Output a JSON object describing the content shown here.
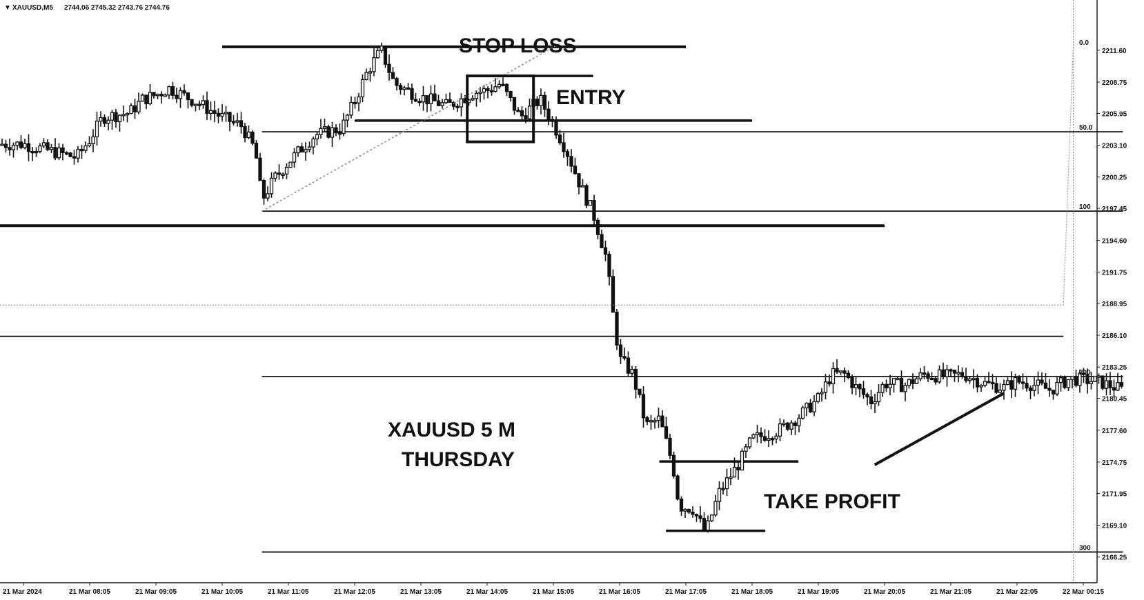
{
  "header": {
    "marker": "▼",
    "symbol": "XAUUSD,M5",
    "ohlc": "2744.06 2745.32 2743.76 2744.76"
  },
  "annotations": {
    "stop_loss": "STOP LOSS",
    "entry": "ENTRY",
    "take_profit": "TAKE PROFIT",
    "caption_line1": "XAUUSD 5 M",
    "caption_line2": "THURSDAY"
  },
  "chart_data": {
    "type": "candlestick",
    "symbol": "XAUUSD",
    "timeframe": "M5",
    "ylim": [
      2165.0,
      2213.5
    ],
    "y_ticks": [
      "2211.60",
      "2208.75",
      "2205.95",
      "2203.10",
      "2200.25",
      "2197.45",
      "2194.60",
      "2191.75",
      "2188.95",
      "2186.10",
      "2183.25",
      "2180.45",
      "2177.60",
      "2174.75",
      "2171.95",
      "2169.10",
      "2166.25"
    ],
    "x_ticks": [
      "21 Mar 2024",
      "21 Mar 08:05",
      "21 Mar 09:05",
      "21 Mar 10:05",
      "21 Mar 11:05",
      "21 Mar 12:05",
      "21 Mar 13:05",
      "21 Mar 14:05",
      "21 Mar 15:05",
      "21 Mar 16:05",
      "21 Mar 17:05",
      "21 Mar 18:05",
      "21 Mar 19:05",
      "21 Mar 20:05",
      "21 Mar 21:05",
      "21 Mar 22:05",
      "22 Mar 00:15"
    ],
    "fib_labels": [
      {
        "label": "0.0",
        "price": 2211.9
      },
      {
        "label": "50.0",
        "price": 2204.3
      },
      {
        "label": "100",
        "price": 2197.2
      },
      {
        "label": "200",
        "price": 2182.4
      },
      {
        "label": "300",
        "price": 2166.7
      }
    ],
    "levels": [
      {
        "name": "top-level",
        "price": 2211.9,
        "from_tick": 3,
        "to_tick": 10
      },
      {
        "name": "stop-loss-level",
        "price": 2209.3,
        "from_tick": 7,
        "to_tick": 8.6
      },
      {
        "name": "entry-level",
        "price": 2205.3,
        "from_tick": 5,
        "to_tick": 11
      },
      {
        "name": "fib-50-level",
        "price": 2204.3,
        "from_tick": 3.6,
        "to_tick": 16.6
      },
      {
        "name": "fib-100-level",
        "price": 2197.2,
        "from_tick": 3.6,
        "to_tick": 16.6
      },
      {
        "name": "support-level",
        "price": 2195.9,
        "from_tick": 0,
        "to_tick": 13
      },
      {
        "name": "mid-level",
        "price": 2186.0,
        "from_tick": 0,
        "to_tick": 15.7
      },
      {
        "name": "fib-200-level",
        "price": 2182.4,
        "from_tick": 3.6,
        "to_tick": 16.6
      },
      {
        "name": "tp-level",
        "price": 2174.8,
        "from_tick": 9.6,
        "to_tick": 11.7
      },
      {
        "name": "low-level",
        "price": 2168.6,
        "from_tick": 9.7,
        "to_tick": 11.2
      },
      {
        "name": "fib-300-level",
        "price": 2166.7,
        "from_tick": 3.6,
        "to_tick": 16.6
      }
    ],
    "series": [
      {
        "name": "",
        "points": [
          [
            0,
            2203.2
          ],
          [
            0.4,
            2202.6
          ],
          [
            0.8,
            2202.0
          ],
          [
            1.0,
            2203.6
          ],
          [
            1.2,
            2205.6
          ],
          [
            1.6,
            2206.0
          ],
          [
            1.8,
            2207.2
          ],
          [
            2.0,
            2207.6
          ],
          [
            2.2,
            2208.2
          ],
          [
            2.6,
            2207.0
          ],
          [
            3.0,
            2205.6
          ],
          [
            3.3,
            2204.8
          ],
          [
            3.5,
            2202.6
          ],
          [
            3.6,
            2198.2
          ],
          [
            3.8,
            2200.2
          ],
          [
            4.0,
            2201.6
          ],
          [
            4.4,
            2204.0
          ],
          [
            4.8,
            2204.6
          ],
          [
            5.0,
            2207.0
          ],
          [
            5.2,
            2209.8
          ],
          [
            5.4,
            2211.6
          ],
          [
            5.6,
            2208.6
          ],
          [
            6.0,
            2207.4
          ],
          [
            6.4,
            2206.6
          ],
          [
            6.8,
            2207.8
          ],
          [
            7.0,
            2208.0
          ],
          [
            7.2,
            2208.6
          ],
          [
            7.5,
            2205.6
          ],
          [
            7.8,
            2207.2
          ],
          [
            8.0,
            2205.0
          ],
          [
            8.2,
            2202.6
          ],
          [
            8.4,
            2199.6
          ],
          [
            8.6,
            2197.0
          ],
          [
            8.8,
            2193.0
          ],
          [
            8.9,
            2188.0
          ],
          [
            9.0,
            2184.0
          ],
          [
            9.2,
            2182.6
          ],
          [
            9.4,
            2178.0
          ],
          [
            9.6,
            2178.6
          ],
          [
            9.8,
            2174.6
          ],
          [
            9.9,
            2170.8
          ],
          [
            10.1,
            2170.6
          ],
          [
            10.3,
            2168.4
          ],
          [
            10.5,
            2172.0
          ],
          [
            10.8,
            2174.6
          ],
          [
            11.0,
            2176.8
          ],
          [
            11.4,
            2177.6
          ],
          [
            11.7,
            2178.8
          ],
          [
            12.0,
            2180.4
          ],
          [
            12.2,
            2182.6
          ],
          [
            12.4,
            2182.6
          ],
          [
            12.6,
            2181.2
          ],
          [
            12.8,
            2180.2
          ],
          [
            13.0,
            2181.8
          ],
          [
            13.3,
            2181.6
          ],
          [
            13.6,
            2182.6
          ],
          [
            13.9,
            2182.4
          ],
          [
            14.2,
            2182.6
          ],
          [
            14.5,
            2181.8
          ],
          [
            14.8,
            2181.4
          ],
          [
            15.0,
            2182.0
          ],
          [
            15.3,
            2181.6
          ],
          [
            15.5,
            2181.2
          ],
          [
            15.8,
            2182.2
          ],
          [
            16.2,
            2182.0
          ],
          [
            16.6,
            2181.2
          ]
        ]
      }
    ]
  }
}
